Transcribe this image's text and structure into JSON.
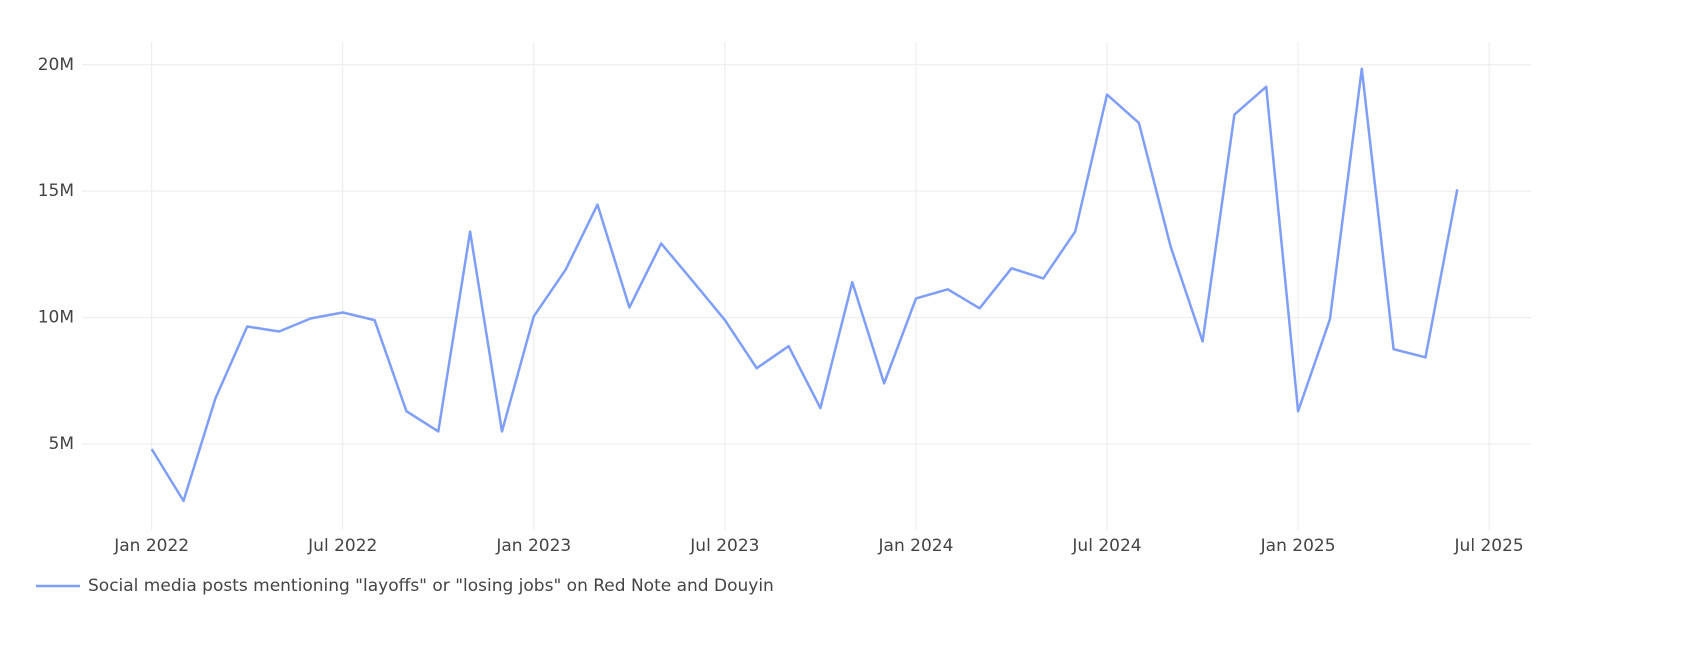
{
  "chart_data": {
    "type": "line",
    "x": [
      "2022-01",
      "2022-02",
      "2022-03",
      "2022-04",
      "2022-05",
      "2022-06",
      "2022-07",
      "2022-08",
      "2022-09",
      "2022-10",
      "2022-11",
      "2022-12",
      "2023-01",
      "2023-02",
      "2023-03",
      "2023-04",
      "2023-05",
      "2023-06",
      "2023-07",
      "2023-08",
      "2023-09",
      "2023-10",
      "2023-11",
      "2023-12",
      "2024-01",
      "2024-02",
      "2024-03",
      "2024-04",
      "2024-05",
      "2024-06",
      "2024-07",
      "2024-08",
      "2024-09",
      "2024-10",
      "2024-11",
      "2024-12",
      "2025-01",
      "2025-02",
      "2025-03",
      "2025-04",
      "2025-05",
      "2025-06"
    ],
    "series": [
      {
        "name": "Social media posts mentioning \"layoffs\" or \"losing jobs\" on Red Note and Douyin",
        "color": "#7f9ef7",
        "values": [
          4800000,
          2750000,
          6800000,
          9650000,
          9450000,
          9970000,
          10200000,
          9900000,
          6300000,
          5500000,
          13400000,
          5500000,
          10050000,
          11900000,
          14470000,
          10400000,
          12930000,
          11430000,
          9900000,
          8000000,
          8870000,
          6420000,
          11400000,
          7400000,
          10760000,
          11120000,
          10370000,
          11950000,
          11550000,
          13400000,
          18820000,
          17700000,
          12800000,
          9060000,
          18030000,
          19130000,
          6300000,
          9930000,
          19840000,
          8750000,
          8430000,
          15070000
        ]
      }
    ],
    "xlim": [
      "2021-11",
      "2025-08"
    ],
    "xticks": [
      {
        "value": "2022-01",
        "label": "Jan 2022"
      },
      {
        "value": "2022-07",
        "label": "Jul 2022"
      },
      {
        "value": "2023-01",
        "label": "Jan 2023"
      },
      {
        "value": "2023-07",
        "label": "Jul 2023"
      },
      {
        "value": "2024-01",
        "label": "Jan 2024"
      },
      {
        "value": "2024-07",
        "label": "Jul 2024"
      },
      {
        "value": "2025-01",
        "label": "Jan 2025"
      },
      {
        "value": "2025-07",
        "label": "Jul 2025"
      }
    ],
    "ylim": [
      1600000,
      20900000
    ],
    "yticks": [
      {
        "value": 5000000,
        "label": "5M"
      },
      {
        "value": 10000000,
        "label": "10M"
      },
      {
        "value": 15000000,
        "label": "15M"
      },
      {
        "value": 20000000,
        "label": "20M"
      }
    ],
    "grid": true,
    "legend": "bottom-left"
  }
}
